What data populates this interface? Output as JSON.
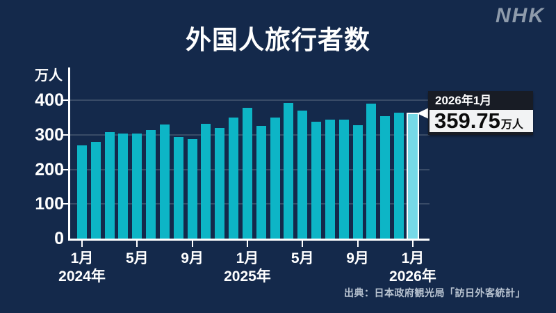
{
  "brand": {
    "logo": "NHK"
  },
  "header": {
    "title": "外国人旅行者数"
  },
  "y_axis": {
    "unit": "万人"
  },
  "callout": {
    "date": "2026年1月",
    "value": "359.75",
    "unit": "万人"
  },
  "source": "出典：日本政府観光局「訪日外客統計」",
  "colors": {
    "background": "#14294b",
    "bar": "#0db5c6",
    "bar_highlight": "#76d9e7",
    "highlight_border": "#ffffff",
    "callout_header_bg": "#181c25",
    "callout_value_bg": "#f2f3f4",
    "axis": "#ffffff",
    "gridline": "rgba(255,255,255,0.16)",
    "source_text": "#b9c4d1",
    "logo": "#8e9bab"
  },
  "chart_data": {
    "type": "bar",
    "title": "外国人旅行者数",
    "ylabel": "万人",
    "xlabel": "",
    "grid": true,
    "ylim": [
      0,
      440
    ],
    "yticks": [
      0,
      100,
      200,
      300,
      400
    ],
    "categories": [
      "2024年1月",
      "2024年2月",
      "2024年3月",
      "2024年4月",
      "2024年5月",
      "2024年6月",
      "2024年7月",
      "2024年8月",
      "2024年9月",
      "2024年10月",
      "2024年11月",
      "2024年12月",
      "2025年1月",
      "2025年2月",
      "2025年3月",
      "2025年4月",
      "2025年5月",
      "2025年6月",
      "2025年7月",
      "2025年8月",
      "2025年9月",
      "2025年10月",
      "2025年11月",
      "2025年12月",
      "2026年1月"
    ],
    "values": [
      270,
      279,
      308,
      304,
      304,
      314,
      329,
      293,
      287,
      331,
      319,
      349,
      378,
      326,
      350,
      391,
      369,
      338,
      344,
      343,
      327,
      390,
      354,
      364,
      359.75
    ],
    "highlight_index": 24,
    "xtick_indices": [
      0,
      4,
      8,
      12,
      16,
      20,
      24
    ],
    "xtick_labels": [
      "1月",
      "5月",
      "9月",
      "1月",
      "5月",
      "9月",
      "1月"
    ],
    "year_labels": [
      {
        "label": "2024年",
        "index": 0
      },
      {
        "label": "2025年",
        "index": 12
      },
      {
        "label": "2026年",
        "index": 24
      }
    ],
    "legend": null
  }
}
